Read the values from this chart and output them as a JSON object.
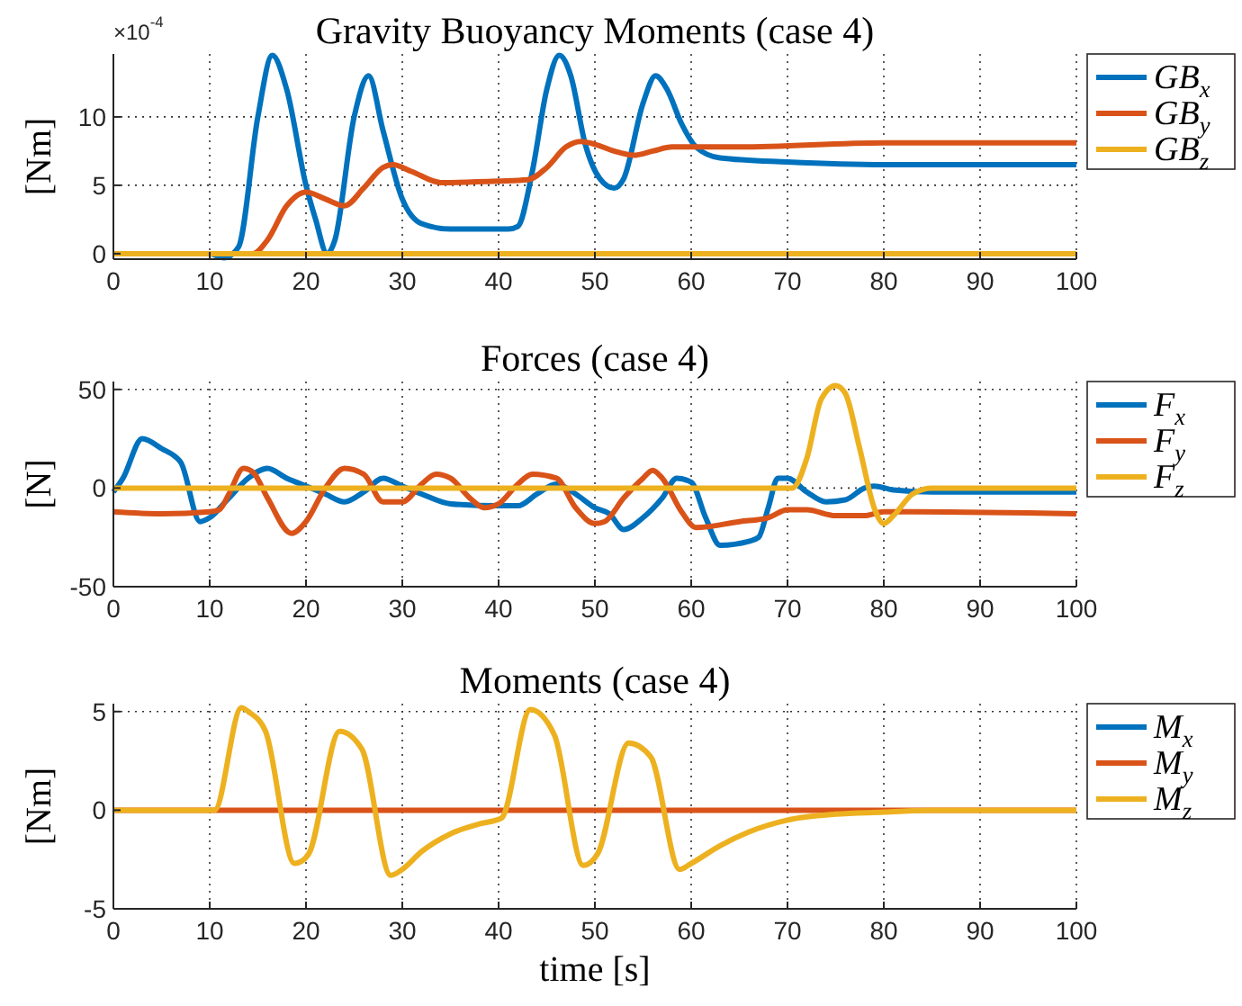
{
  "chart_data": [
    {
      "type": "line",
      "title": "Gravity Buoyancy Moments (case 4)",
      "ylabel": "[Nm]",
      "annotations": [
        "×10$^{-4}$"
      ],
      "xlim": [
        0,
        100
      ],
      "xticks": [
        0,
        10,
        20,
        30,
        40,
        50,
        60,
        70,
        80,
        90,
        100
      ],
      "ylim": [
        -0.4,
        14.6
      ],
      "yticks": [
        0,
        5,
        10
      ],
      "grid": true,
      "legend": "top right",
      "line_style": "solid",
      "series": [
        {
          "name": "GB$_{x}$",
          "color": "#0072bd",
          "x": [
            0,
            10,
            11.5,
            13,
            15,
            16.5,
            18,
            20,
            21,
            22.2,
            23,
            25,
            26.5,
            28,
            30,
            32,
            35,
            41,
            42,
            43.5,
            45,
            46.3,
            47.5,
            49,
            50.5,
            52,
            53,
            55,
            56.3,
            57.5,
            59,
            60.5,
            63,
            70,
            80,
            100
          ],
          "values": [
            0,
            0,
            -0.3,
            0.5,
            10,
            14.5,
            12,
            5,
            2.5,
            0,
            1,
            10,
            13,
            9,
            4,
            2.2,
            1.8,
            1.8,
            2,
            6,
            12,
            14.5,
            13,
            8,
            5.5,
            4.8,
            5.5,
            11,
            13,
            12,
            9.5,
            7.8,
            7,
            6.7,
            6.5,
            6.5
          ]
        },
        {
          "name": "GB$_{y}$",
          "color": "#d95319",
          "x": [
            0,
            13,
            14.5,
            16,
            18,
            20,
            22,
            24,
            26,
            28,
            29,
            31,
            34,
            40,
            43,
            45,
            47,
            48.5,
            50,
            52,
            54,
            56,
            58,
            65,
            80,
            100
          ],
          "values": [
            0,
            0,
            0,
            1,
            3.5,
            4.5,
            4,
            3.5,
            4.8,
            6.3,
            6.5,
            6,
            5.2,
            5.3,
            5.4,
            6.3,
            7.8,
            8.2,
            8,
            7.5,
            7.2,
            7.5,
            7.8,
            7.8,
            8.1,
            8.1
          ]
        },
        {
          "name": "GB$_{z}$",
          "color": "#edb120",
          "x": [
            0,
            100
          ],
          "values": [
            0,
            0
          ]
        }
      ]
    },
    {
      "type": "line",
      "title": "Forces (case 4)",
      "ylabel": "[N]",
      "xlim": [
        0,
        100
      ],
      "xticks": [
        0,
        10,
        20,
        30,
        40,
        50,
        60,
        70,
        80,
        90,
        100
      ],
      "ylim": [
        -50,
        54
      ],
      "yticks": [
        -50,
        0,
        50
      ],
      "grid": true,
      "legend": "top right",
      "line_style": "solid",
      "series": [
        {
          "name": "F$_{x}$",
          "color": "#0072bd",
          "x": [
            0,
            1,
            3,
            5,
            7,
            9,
            10,
            12,
            14,
            16,
            18,
            20,
            22,
            24,
            26,
            28,
            30,
            32,
            35,
            40,
            42,
            44,
            46,
            48,
            50,
            51.5,
            53,
            55,
            57,
            58.5,
            60,
            61.5,
            63,
            66,
            67,
            68,
            69,
            70,
            72,
            74,
            76,
            78,
            79,
            81,
            85,
            100
          ],
          "values": [
            -2,
            5,
            25,
            20,
            13,
            -17,
            -15,
            -5,
            5,
            10,
            5,
            1,
            -3,
            -7,
            -2,
            5,
            1,
            -3,
            -8,
            -9,
            -9,
            -3,
            2,
            -3,
            -10,
            -13,
            -21,
            -15,
            -5,
            5,
            3,
            -15,
            -29,
            -27,
            -25,
            -10,
            5,
            5,
            -2,
            -7,
            -6,
            0,
            1,
            -1,
            -2,
            -2
          ]
        },
        {
          "name": "F$_{y}$",
          "color": "#d95319",
          "x": [
            0,
            5,
            10,
            11,
            12,
            13.5,
            14.5,
            16,
            18.5,
            20,
            22,
            24,
            26,
            28,
            30,
            32,
            33.5,
            35,
            37,
            38.5,
            40,
            42,
            43.5,
            46,
            48,
            50,
            51,
            53,
            55,
            56,
            57,
            59,
            60.5,
            65,
            68,
            70,
            72,
            75,
            78,
            80,
            100
          ],
          "values": [
            -12,
            -13,
            -12,
            -11,
            -3,
            10,
            8,
            -5,
            -23,
            -17,
            0,
            10,
            7,
            -7,
            -7,
            2,
            7,
            5,
            -5,
            -10,
            -8,
            2,
            7,
            5,
            -10,
            -18,
            -17,
            -5,
            5,
            9,
            5,
            -12,
            -20,
            -17,
            -15,
            -11,
            -11,
            -14,
            -14,
            -12,
            -13
          ]
        },
        {
          "name": "F$_{z}$",
          "color": "#edb120",
          "x": [
            0,
            70.5,
            72,
            73.5,
            75,
            76,
            77.5,
            79,
            80,
            81,
            83,
            85,
            100
          ],
          "values": [
            0,
            0,
            15,
            45,
            52,
            48,
            20,
            -10,
            -18,
            -14,
            -3,
            0,
            0
          ]
        }
      ]
    },
    {
      "type": "line",
      "title": "Moments (case 4)",
      "xlabel": "time [s]",
      "ylabel": "[Nm]",
      "xlim": [
        0,
        100
      ],
      "xticks": [
        0,
        10,
        20,
        30,
        40,
        50,
        60,
        70,
        80,
        90,
        100
      ],
      "ylim": [
        -5,
        5.4
      ],
      "yticks": [
        -5,
        0,
        5
      ],
      "grid": true,
      "legend": "top right",
      "line_style": "solid",
      "series": [
        {
          "name": "M$_{x}$",
          "color": "#0072bd"
        },
        {
          "name": "M$_{y}$",
          "color": "#d95319",
          "x": [
            0,
            100
          ],
          "values": [
            0,
            0
          ]
        },
        {
          "name": "M$_{z}$",
          "color": "#edb120",
          "x": [
            0,
            10.5,
            13.3,
            14,
            15.8,
            18.8,
            19.5,
            20.3,
            23.5,
            25.8,
            28.8,
            30,
            32,
            35,
            38,
            40.3,
            43.3,
            45.8,
            48.8,
            50.3,
            53.5,
            55.8,
            58.8,
            60,
            63,
            66,
            70,
            75,
            80,
            85,
            100
          ],
          "values": [
            0,
            0,
            5.2,
            5,
            4,
            -2.7,
            -2.6,
            -2.2,
            4,
            3.1,
            -3.3,
            -3,
            -2.1,
            -1.2,
            -0.7,
            -0.4,
            5.1,
            3.8,
            -2.8,
            -2.2,
            3.4,
            2.7,
            -3,
            -2.7,
            -1.8,
            -1.1,
            -0.5,
            -0.2,
            -0.1,
            0,
            0
          ]
        }
      ]
    }
  ]
}
